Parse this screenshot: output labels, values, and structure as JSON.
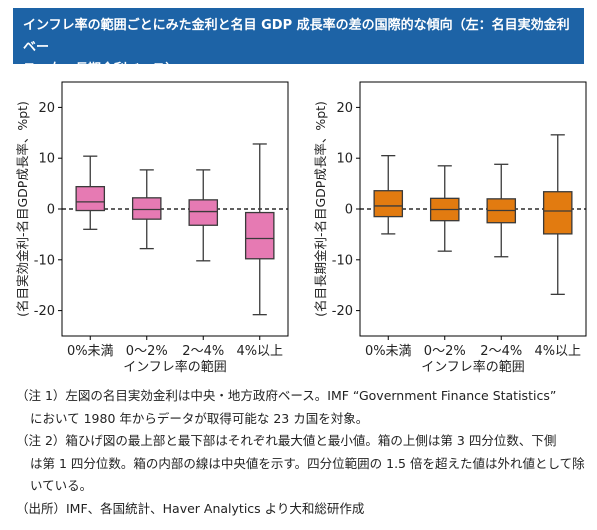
{
  "header": {
    "title_line1": "インフレ率の範囲ごとにみた金利と名目 GDP 成長率の差の国際的な傾向（左：名目実効金利ベー",
    "title_line2": "ス、右：長期金利ベース）"
  },
  "chart_data": [
    {
      "type": "box",
      "ylabel": "(名目実効金利-名目GDP成長率、%pt)",
      "xlabel": "インフレ率の範囲",
      "ylim": [
        -25,
        25
      ],
      "yticks": [
        -20,
        -10,
        0,
        10,
        20
      ],
      "reference_line": 0,
      "color": "#e67ab3",
      "categories": [
        "0%未満",
        "0〜2%",
        "2〜4%",
        "4%以上"
      ],
      "boxes": [
        {
          "min": -4.0,
          "q1": -0.3,
          "median": 1.4,
          "q3": 4.4,
          "max": 10.4
        },
        {
          "min": -7.8,
          "q1": -2.0,
          "median": -0.1,
          "q3": 2.2,
          "max": 7.7
        },
        {
          "min": -10.2,
          "q1": -3.2,
          "median": -0.5,
          "q3": 1.8,
          "max": 7.7
        },
        {
          "min": -20.8,
          "q1": -9.8,
          "median": -5.8,
          "q3": -0.7,
          "max": 12.8
        }
      ]
    },
    {
      "type": "box",
      "ylabel": "(名目長期金利-名目GDP成長率、%pt)",
      "xlabel": "インフレ率の範囲",
      "ylim": [
        -25,
        25
      ],
      "yticks": [
        -20,
        -10,
        0,
        10,
        20
      ],
      "reference_line": 0,
      "color": "#e27b10",
      "categories": [
        "0%未満",
        "0〜2%",
        "2〜4%",
        "4%以上"
      ],
      "boxes": [
        {
          "min": -4.9,
          "q1": -1.5,
          "median": 0.6,
          "q3": 3.6,
          "max": 10.5
        },
        {
          "min": -8.3,
          "q1": -2.3,
          "median": -0.1,
          "q3": 2.1,
          "max": 8.5
        },
        {
          "min": -9.4,
          "q1": -2.7,
          "median": -0.3,
          "q3": 2.0,
          "max": 8.8
        },
        {
          "min": -16.8,
          "q1": -4.9,
          "median": -0.4,
          "q3": 3.4,
          "max": 14.6
        }
      ]
    }
  ],
  "notes": {
    "note1_line1": "（注 1）左図の名目実効金利は中央・地方政府ベース。IMF “Government Finance Statistics”",
    "note1_line2": "において 1980 年からデータが取得可能な 23 カ国を対象。",
    "note2_line1": "（注 2）箱ひげ図の最上部と最下部はそれぞれ最大値と最小値。箱の上側は第 3 四分位数、下側",
    "note2_line2": "は第 1 四分位数。箱の内部の線は中央値を示す。四分位範囲の 1.5 倍を超えた値は外れ値として除",
    "note2_line3": "いている。",
    "source": "（出所）IMF、各国統計、Haver Analytics より大和総研作成"
  }
}
